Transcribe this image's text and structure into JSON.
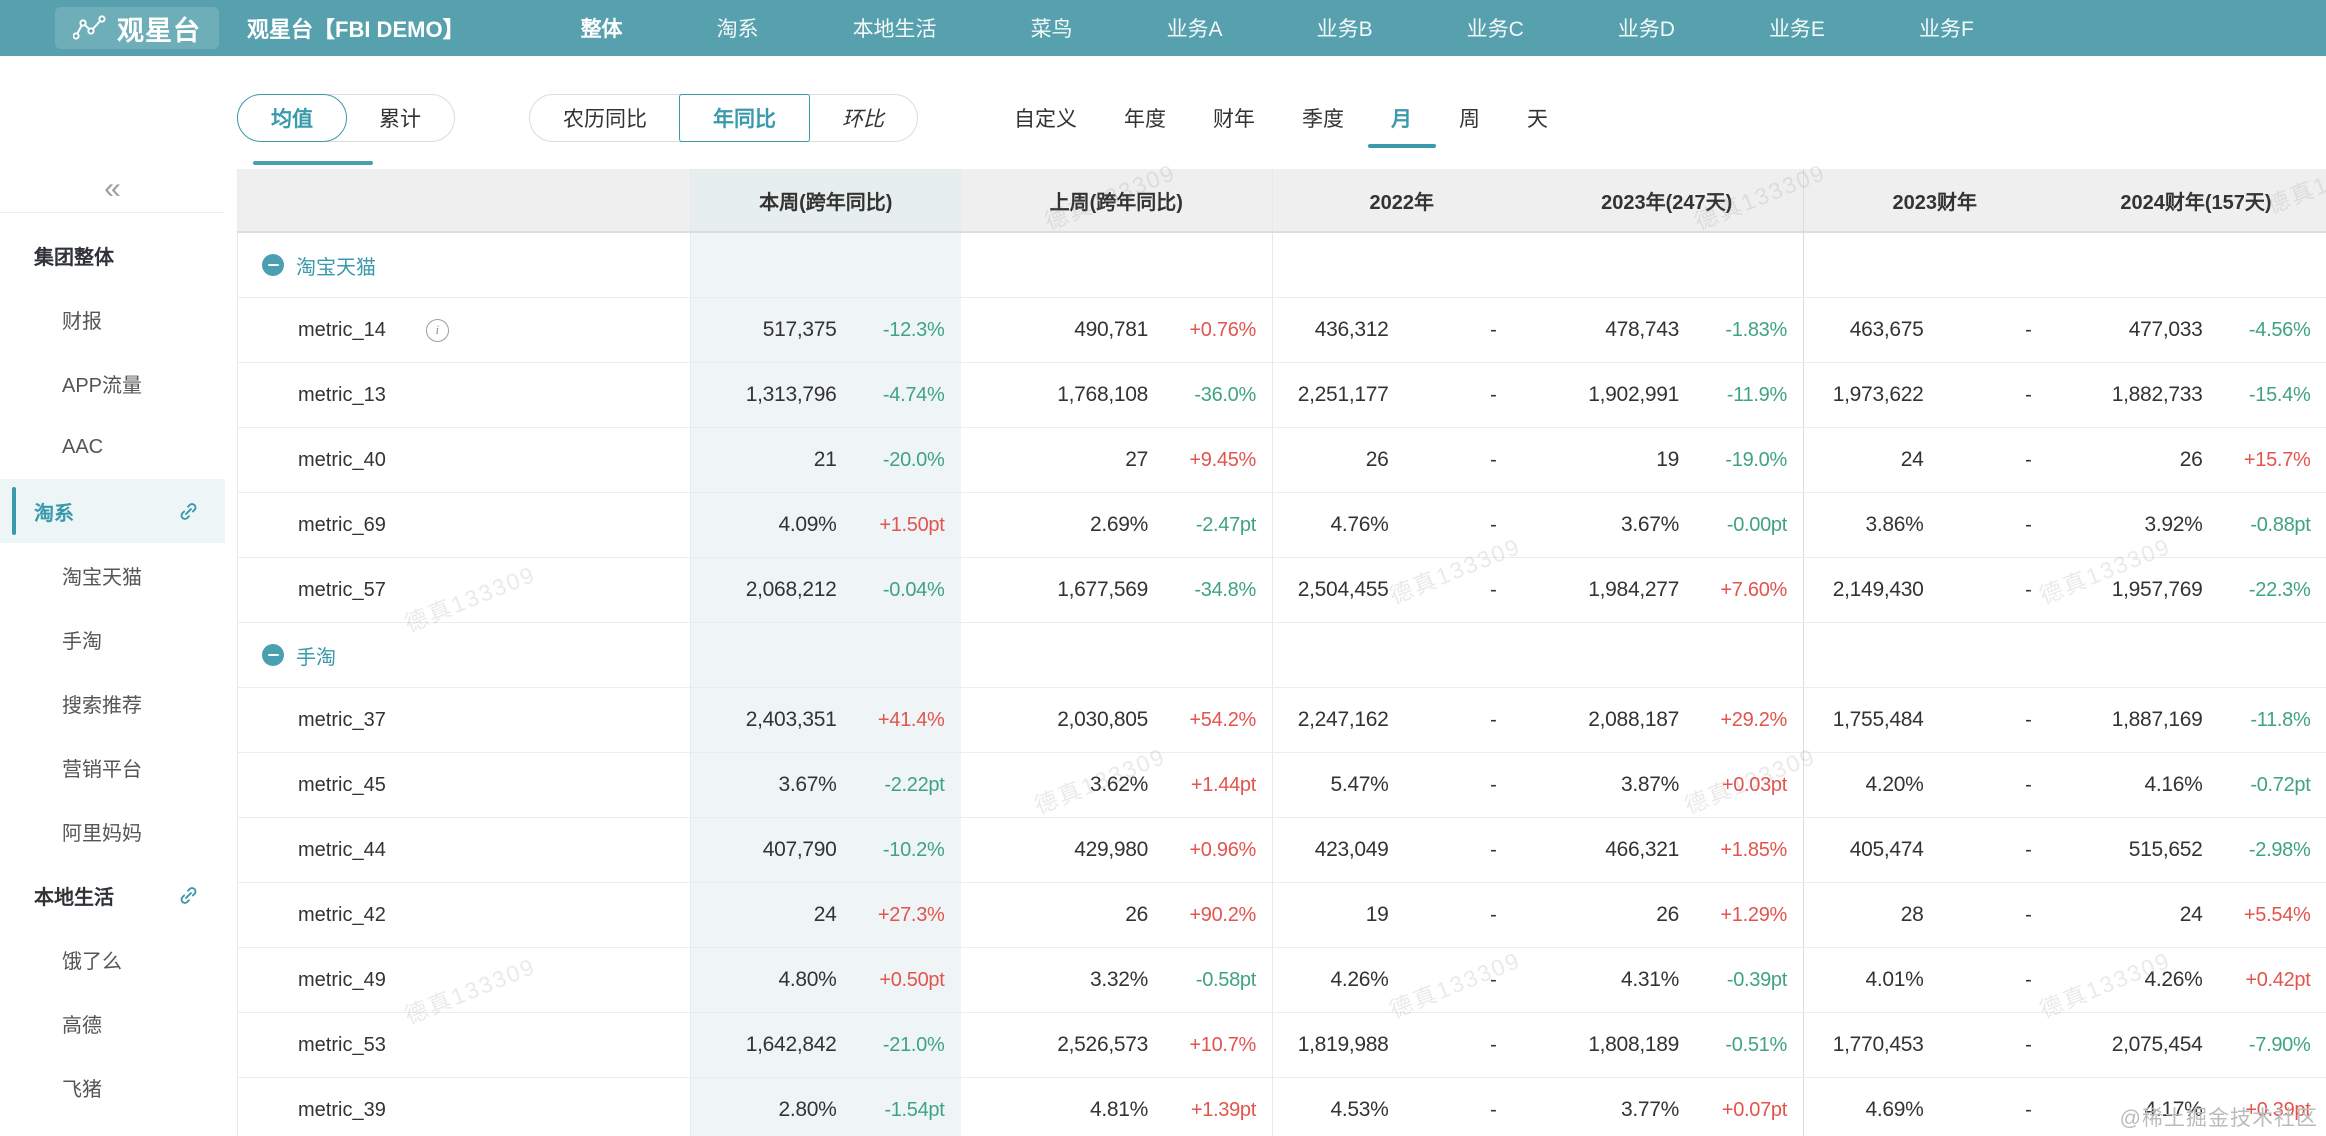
{
  "colors": {
    "navbar": "#57a1ae",
    "accent": "#3a9aac",
    "positive_red": "#e2544d",
    "negative_green": "#3fa383",
    "tint_column": "#eff5f6"
  },
  "navbar": {
    "logo_text": "观星台",
    "title": "观星台【FBI DEMO】",
    "items": [
      {
        "label": "整体",
        "active": true
      },
      {
        "label": "淘系",
        "active": false
      },
      {
        "label": "本地生活",
        "active": false
      },
      {
        "label": "菜鸟",
        "active": false
      },
      {
        "label": "业务A",
        "active": false
      },
      {
        "label": "业务B",
        "active": false
      },
      {
        "label": "业务C",
        "active": false
      },
      {
        "label": "业务D",
        "active": false
      },
      {
        "label": "业务E",
        "active": false
      },
      {
        "label": "业务F",
        "active": false
      }
    ]
  },
  "filters": {
    "agg": [
      {
        "label": "均值",
        "active": true
      },
      {
        "label": "累计",
        "active": false
      }
    ],
    "compare": [
      {
        "label": "农历同比",
        "active": false
      },
      {
        "label": "年同比",
        "active": true
      },
      {
        "label": "环比",
        "active": false,
        "italic": true
      }
    ],
    "period_tabs": [
      {
        "label": "自定义",
        "active": false
      },
      {
        "label": "年度",
        "active": false
      },
      {
        "label": "财年",
        "active": false
      },
      {
        "label": "季度",
        "active": false
      },
      {
        "label": "月",
        "active": true
      },
      {
        "label": "周",
        "active": false
      },
      {
        "label": "天",
        "active": false
      }
    ]
  },
  "sidebar": {
    "collapse_icon": "«",
    "items": [
      {
        "label": "集团整体",
        "level": 0,
        "bold": true,
        "active": false,
        "link": false
      },
      {
        "label": "财报",
        "level": 1,
        "bold": false,
        "active": false,
        "link": false
      },
      {
        "label": "APP流量",
        "level": 1,
        "bold": false,
        "active": false,
        "link": false
      },
      {
        "label": "AAC",
        "level": 1,
        "bold": false,
        "active": false,
        "link": false
      },
      {
        "label": "淘系",
        "level": 0,
        "bold": true,
        "active": true,
        "link": true
      },
      {
        "label": "淘宝天猫",
        "level": 1,
        "bold": false,
        "active": false,
        "link": false
      },
      {
        "label": "手淘",
        "level": 1,
        "bold": false,
        "active": false,
        "link": false
      },
      {
        "label": "搜索推荐",
        "level": 1,
        "bold": false,
        "active": false,
        "link": false
      },
      {
        "label": "营销平台",
        "level": 1,
        "bold": false,
        "active": false,
        "link": false
      },
      {
        "label": "阿里妈妈",
        "level": 1,
        "bold": false,
        "active": false,
        "link": false
      },
      {
        "label": "本地生活",
        "level": 0,
        "bold": true,
        "active": false,
        "link": true
      },
      {
        "label": "饿了么",
        "level": 1,
        "bold": false,
        "active": false,
        "link": false
      },
      {
        "label": "高德",
        "level": 1,
        "bold": false,
        "active": false,
        "link": false
      },
      {
        "label": "飞猪",
        "level": 1,
        "bold": false,
        "active": false,
        "link": false
      }
    ]
  },
  "table": {
    "columns": [
      "",
      "本周(跨年同比)",
      "上周(跨年同比)",
      "2022年",
      "2023年(247天)",
      "2023财年",
      "2024财年(157天)"
    ],
    "rows": [
      {
        "type": "group",
        "label": "淘宝天猫"
      },
      {
        "type": "data",
        "label": "metric_14",
        "info": true,
        "cells": [
          {
            "v": "517,375",
            "d": "-12.3%",
            "dc": "g"
          },
          {
            "v": "490,781",
            "d": "+0.76%",
            "dc": "r"
          },
          {
            "v": "436,312",
            "d": "-"
          },
          {
            "v": "478,743",
            "d": "-1.83%",
            "dc": "g"
          },
          {
            "v": "463,675",
            "d": "-"
          },
          {
            "v": "477,033",
            "d": "-4.56%",
            "dc": "g"
          }
        ]
      },
      {
        "type": "data",
        "label": "metric_13",
        "cells": [
          {
            "v": "1,313,796",
            "d": "-4.74%",
            "dc": "g"
          },
          {
            "v": "1,768,108",
            "d": "-36.0%",
            "dc": "g"
          },
          {
            "v": "2,251,177",
            "d": "-"
          },
          {
            "v": "1,902,991",
            "d": "-11.9%",
            "dc": "g"
          },
          {
            "v": "1,973,622",
            "d": "-"
          },
          {
            "v": "1,882,733",
            "d": "-15.4%",
            "dc": "g"
          }
        ]
      },
      {
        "type": "data",
        "label": "metric_40",
        "cells": [
          {
            "v": "21",
            "d": "-20.0%",
            "dc": "g"
          },
          {
            "v": "27",
            "d": "+9.45%",
            "dc": "r"
          },
          {
            "v": "26",
            "d": "-"
          },
          {
            "v": "19",
            "d": "-19.0%",
            "dc": "g"
          },
          {
            "v": "24",
            "d": "-"
          },
          {
            "v": "26",
            "d": "+15.7%",
            "dc": "r"
          }
        ]
      },
      {
        "type": "data",
        "label": "metric_69",
        "cells": [
          {
            "v": "4.09%",
            "d": "+1.50pt",
            "dc": "r"
          },
          {
            "v": "2.69%",
            "d": "-2.47pt",
            "dc": "g"
          },
          {
            "v": "4.76%",
            "d": "-"
          },
          {
            "v": "3.67%",
            "d": "-0.00pt",
            "dc": "g"
          },
          {
            "v": "3.86%",
            "d": "-"
          },
          {
            "v": "3.92%",
            "d": "-0.88pt",
            "dc": "g"
          }
        ]
      },
      {
        "type": "data",
        "label": "metric_57",
        "cells": [
          {
            "v": "2,068,212",
            "d": "-0.04%",
            "dc": "g"
          },
          {
            "v": "1,677,569",
            "d": "-34.8%",
            "dc": "g"
          },
          {
            "v": "2,504,455",
            "d": "-"
          },
          {
            "v": "1,984,277",
            "d": "+7.60%",
            "dc": "r"
          },
          {
            "v": "2,149,430",
            "d": "-"
          },
          {
            "v": "1,957,769",
            "d": "-22.3%",
            "dc": "g"
          }
        ]
      },
      {
        "type": "group",
        "label": "手淘"
      },
      {
        "type": "data",
        "label": "metric_37",
        "cells": [
          {
            "v": "2,403,351",
            "d": "+41.4%",
            "dc": "r"
          },
          {
            "v": "2,030,805",
            "d": "+54.2%",
            "dc": "r"
          },
          {
            "v": "2,247,162",
            "d": "-"
          },
          {
            "v": "2,088,187",
            "d": "+29.2%",
            "dc": "r"
          },
          {
            "v": "1,755,484",
            "d": "-"
          },
          {
            "v": "1,887,169",
            "d": "-11.8%",
            "dc": "g"
          }
        ]
      },
      {
        "type": "data",
        "label": "metric_45",
        "cells": [
          {
            "v": "3.67%",
            "d": "-2.22pt",
            "dc": "g"
          },
          {
            "v": "3.62%",
            "d": "+1.44pt",
            "dc": "r"
          },
          {
            "v": "5.47%",
            "d": "-"
          },
          {
            "v": "3.87%",
            "d": "+0.03pt",
            "dc": "r"
          },
          {
            "v": "4.20%",
            "d": "-"
          },
          {
            "v": "4.16%",
            "d": "-0.72pt",
            "dc": "g"
          }
        ]
      },
      {
        "type": "data",
        "label": "metric_44",
        "cells": [
          {
            "v": "407,790",
            "d": "-10.2%",
            "dc": "g"
          },
          {
            "v": "429,980",
            "d": "+0.96%",
            "dc": "r"
          },
          {
            "v": "423,049",
            "d": "-"
          },
          {
            "v": "466,321",
            "d": "+1.85%",
            "dc": "r"
          },
          {
            "v": "405,474",
            "d": "-"
          },
          {
            "v": "515,652",
            "d": "-2.98%",
            "dc": "g"
          }
        ]
      },
      {
        "type": "data",
        "label": "metric_42",
        "cells": [
          {
            "v": "24",
            "d": "+27.3%",
            "dc": "r"
          },
          {
            "v": "26",
            "d": "+90.2%",
            "dc": "r"
          },
          {
            "v": "19",
            "d": "-"
          },
          {
            "v": "26",
            "d": "+1.29%",
            "dc": "r"
          },
          {
            "v": "28",
            "d": "-"
          },
          {
            "v": "24",
            "d": "+5.54%",
            "dc": "r"
          }
        ]
      },
      {
        "type": "data",
        "label": "metric_49",
        "cells": [
          {
            "v": "4.80%",
            "d": "+0.50pt",
            "dc": "r"
          },
          {
            "v": "3.32%",
            "d": "-0.58pt",
            "dc": "g"
          },
          {
            "v": "4.26%",
            "d": "-"
          },
          {
            "v": "4.31%",
            "d": "-0.39pt",
            "dc": "g"
          },
          {
            "v": "4.01%",
            "d": "-"
          },
          {
            "v": "4.26%",
            "d": "+0.42pt",
            "dc": "r"
          }
        ]
      },
      {
        "type": "data",
        "label": "metric_53",
        "cells": [
          {
            "v": "1,642,842",
            "d": "-21.0%",
            "dc": "g"
          },
          {
            "v": "2,526,573",
            "d": "+10.7%",
            "dc": "r"
          },
          {
            "v": "1,819,988",
            "d": "-"
          },
          {
            "v": "1,808,189",
            "d": "-0.51%",
            "dc": "g"
          },
          {
            "v": "1,770,453",
            "d": "-"
          },
          {
            "v": "2,075,454",
            "d": "-7.90%",
            "dc": "g"
          }
        ]
      },
      {
        "type": "data",
        "label": "metric_39",
        "cells": [
          {
            "v": "2.80%",
            "d": "-1.54pt",
            "dc": "g"
          },
          {
            "v": "4.81%",
            "d": "+1.39pt",
            "dc": "r"
          },
          {
            "v": "4.53%",
            "d": "-"
          },
          {
            "v": "3.77%",
            "d": "+0.07pt",
            "dc": "r"
          },
          {
            "v": "4.69%",
            "d": "-"
          },
          {
            "v": "4.17%",
            "d": "+0.39pt",
            "dc": "r"
          }
        ]
      }
    ]
  },
  "watermark": {
    "text": "德真133309",
    "badge": "@稀土掘金技术社区"
  }
}
